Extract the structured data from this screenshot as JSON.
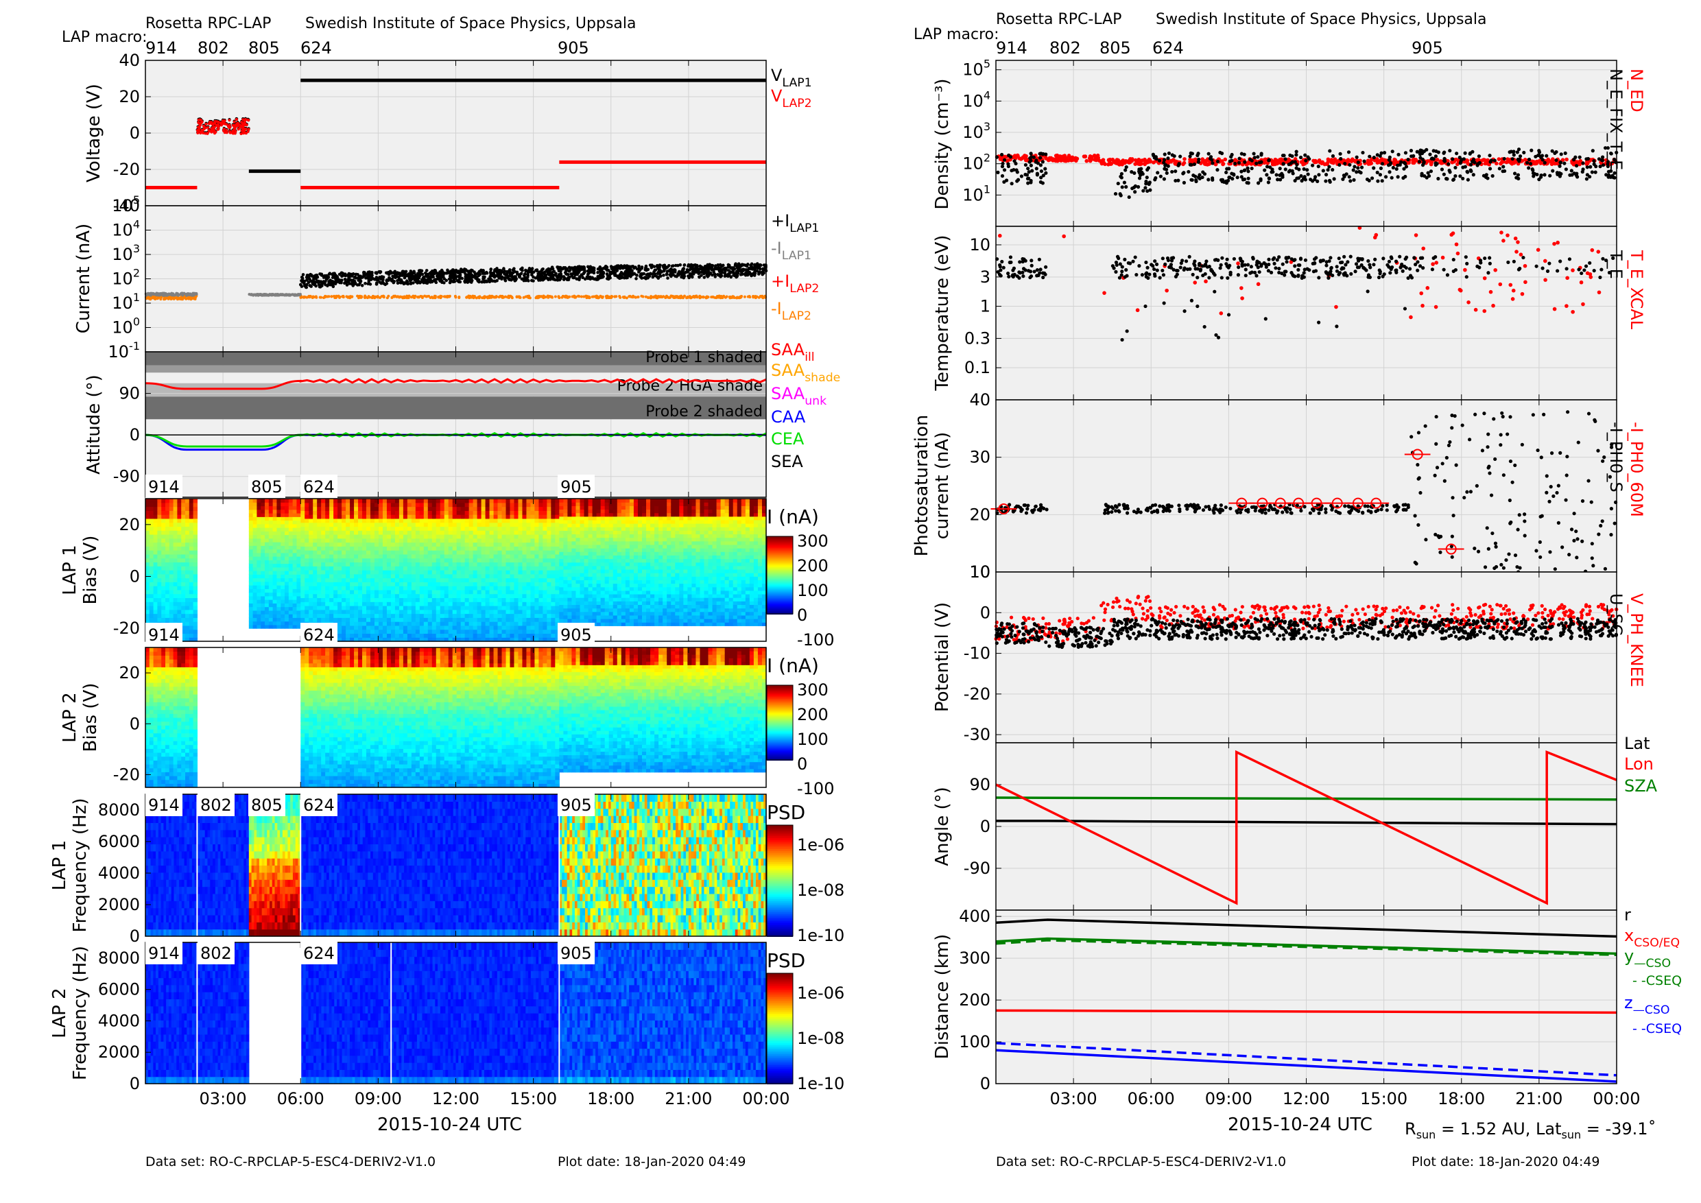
{
  "left": {
    "header": {
      "title": "Rosetta RPC-LAP",
      "institute": "Swedish Institute of Space Physics, Uppsala",
      "macro_label": "LAP macro:"
    },
    "macros": [
      "914",
      "802",
      "805",
      "624",
      "905"
    ],
    "footer": {
      "dataset": "Data set: RO-C-RPCLAP-5-ESC4-DERIV2-V1.0",
      "plotdate": "Plot date: 18-Jan-2020 04:49"
    },
    "xlabel": "2015-10-24 UTC"
  },
  "right": {
    "header": {
      "title": "Rosetta RPC-LAP",
      "institute": "Swedish Institute of Space Physics, Uppsala",
      "macro_label": "LAP macro:"
    },
    "macros": [
      "914",
      "802",
      "805",
      "624",
      "905"
    ],
    "footer": {
      "dataset": "Data set: RO-C-RPCLAP-5-ESC4-DERIV2-V1.0",
      "plotdate": "Plot date: 18-Jan-2020 04:49"
    },
    "xlabel": "2015-10-24 UTC",
    "rsun_text": "R",
    "rsun_sub": "sun",
    "rsun_val": " = 1.52 AU, Lat",
    "latsun_sub": "sun",
    "latsun_val": " = -39.1˚"
  },
  "chart_data": [
    {
      "type": "scatter",
      "panel": "voltage",
      "ylabel": "Voltage (V)",
      "ylim": [
        -40,
        40
      ],
      "yticks": [
        "40",
        "20",
        "0",
        "-20",
        "-40"
      ],
      "legend": [
        {
          "label": "V",
          "sub": "LAP1",
          "color": "#000000"
        },
        {
          "label": "V",
          "sub": "LAP2",
          "color": "#ff0000"
        }
      ],
      "series": [
        {
          "name": "VLAP2",
          "segments": [
            [
              0.0,
              2.0,
              -30
            ],
            [
              2.0,
              4.0,
              4
            ],
            [
              6.0,
              16.0,
              -30
            ],
            [
              16.0,
              24.0,
              -16
            ]
          ]
        },
        {
          "name": "VLAP1",
          "segments": [
            [
              4.0,
              6.0,
              -21
            ],
            [
              6.0,
              24.0,
              29
            ]
          ]
        }
      ]
    },
    {
      "type": "scatter",
      "panel": "current",
      "ylabel": "Current (nA)",
      "yscale": "log",
      "ylim": [
        0.1,
        100000
      ],
      "yticks": [
        "10^5",
        "10^4",
        "10^3",
        "10^2",
        "10^1",
        "10^0",
        "10^-1"
      ],
      "legend": [
        {
          "label": "+I",
          "sub": "LAP1",
          "color": "#000000"
        },
        {
          "label": "-I",
          "sub": "LAP1",
          "color": "#808080"
        },
        {
          "label": "+I",
          "sub": "LAP2",
          "color": "#ff0000"
        },
        {
          "label": "-I",
          "sub": "LAP2",
          "color": "#ff8000"
        }
      ],
      "series": [
        {
          "name": "+ILAP1",
          "segments": [
            [
              6.0,
              24.0,
              160
            ]
          ]
        },
        {
          "name": "-ILAP1",
          "segments": [
            [
              0.0,
              2.0,
              22
            ],
            [
              4.0,
              6.0,
              22
            ]
          ]
        },
        {
          "name": "-ILAP2",
          "segments": [
            [
              0.0,
              2.0,
              18
            ],
            [
              6.0,
              24.0,
              18
            ]
          ]
        }
      ]
    },
    {
      "type": "line",
      "panel": "attitude",
      "ylabel": "Attitude (°)",
      "ylim": [
        -135,
        180
      ],
      "yticks": [
        "90",
        "0",
        "-90"
      ],
      "bands": [
        "Probe 1 shaded",
        "Probe 2 HGA shade",
        "Probe 2 shaded"
      ],
      "legend": [
        {
          "label": "SAA",
          "sub": "ill",
          "color": "#ff0000"
        },
        {
          "label": "SAA",
          "sub": "shade",
          "color": "#ffa500"
        },
        {
          "label": "SAA",
          "sub": "unk",
          "color": "#ff00ff"
        },
        {
          "label": "CAA",
          "sub": "",
          "color": "#0000ff"
        },
        {
          "label": "CEA",
          "sub": "",
          "color": "#00dd00"
        },
        {
          "label": "SEA",
          "sub": "",
          "color": "#000000"
        }
      ]
    },
    {
      "type": "heatmap",
      "panel": "lap1_sweep",
      "ylabel": "LAP 1 Bias (V)",
      "ylim": [
        -25,
        30
      ],
      "yticks": [
        "20",
        "0",
        "-20"
      ],
      "colorbar_label": "I (nA)",
      "colorbar_ticks": [
        "300",
        "200",
        "100",
        "0",
        "-100"
      ]
    },
    {
      "type": "heatmap",
      "panel": "lap2_sweep",
      "ylabel": "LAP 2 Bias (V)",
      "ylim": [
        -25,
        30
      ],
      "yticks": [
        "20",
        "0",
        "-20"
      ],
      "colorbar_label": "I (nA)",
      "colorbar_ticks": [
        "300",
        "200",
        "100",
        "0",
        "-100"
      ]
    },
    {
      "type": "heatmap",
      "panel": "lap1_psd",
      "ylabel": "LAP 1 Frequency (Hz)",
      "ylim": [
        0,
        9000
      ],
      "yticks": [
        "8000",
        "6000",
        "4000",
        "2000",
        "0"
      ],
      "colorbar_label": "PSD",
      "colorbar_ticks": [
        "1e-06",
        "1e-08",
        "1e-10"
      ]
    },
    {
      "type": "heatmap",
      "panel": "lap2_psd",
      "ylabel": "LAP 2 Frequency (Hz)",
      "ylim": [
        0,
        9000
      ],
      "yticks": [
        "8000",
        "6000",
        "4000",
        "2000",
        "0"
      ],
      "colorbar_label": "PSD",
      "colorbar_ticks": [
        "1e-06",
        "1e-08",
        "1e-10"
      ]
    },
    {
      "type": "scatter",
      "panel": "density",
      "ylabel": "Density (cm⁻³)",
      "yscale": "log",
      "ylim": [
        1,
        100000
      ],
      "yticks": [
        "10^5",
        "10^4",
        "10^3",
        "10^2",
        "10^1"
      ],
      "legend_right": [
        {
          "label": "N_ED",
          "color": "#ff0000"
        },
        {
          "label": "N_E_FIX_T_E",
          "color": "#000000"
        }
      ],
      "series": [
        {
          "name": "N_ED",
          "level": 140
        },
        {
          "name": "N_E_FIX_T_E",
          "level": 60
        }
      ]
    },
    {
      "type": "scatter",
      "panel": "temperature",
      "ylabel": "Temperature (eV)",
      "yscale": "log",
      "ylim": [
        0.03,
        20
      ],
      "yticks": [
        "10",
        "3",
        "1",
        "0.3",
        "0.1"
      ],
      "legend_right": [
        {
          "label": "T_E_XCAL",
          "color": "#ff0000"
        },
        {
          "label": "T_E",
          "color": "#000000"
        }
      ]
    },
    {
      "type": "scatter",
      "panel": "photosat",
      "ylabel": "Photosaturation current (nA)",
      "ylim": [
        10,
        40
      ],
      "yticks": [
        "40",
        "30",
        "20",
        "10"
      ],
      "legend_right": [
        {
          "label": "-I_PH0_60M",
          "color": "#ff0000"
        },
        {
          "label": "-I_PH0_S",
          "color": "#000000"
        }
      ],
      "series": [
        {
          "name": "-I_PH0_S",
          "level": 21
        }
      ]
    },
    {
      "type": "scatter",
      "panel": "potential",
      "ylabel": "Potential (V)",
      "ylim": [
        -32,
        10
      ],
      "yticks": [
        "10",
        "0",
        "-10",
        "-20",
        "-30"
      ],
      "legend_right": [
        {
          "label": "V_PH_KNEE",
          "color": "#ff0000"
        },
        {
          "label": "U_SC",
          "color": "#000000"
        }
      ],
      "series": [
        {
          "name": "U_SC",
          "level": -4
        },
        {
          "name": "V_PH_KNEE",
          "level": 0
        }
      ]
    },
    {
      "type": "line",
      "panel": "angle",
      "ylabel": "Angle (°)",
      "ylim": [
        -180,
        180
      ],
      "yticks": [
        "90",
        "0",
        "-90"
      ],
      "legend": [
        {
          "label": "Lat",
          "color": "#000000"
        },
        {
          "label": "Lon",
          "color": "#ff0000"
        },
        {
          "label": "SZA",
          "color": "#008000"
        }
      ],
      "series": [
        {
          "name": "Lat",
          "x": [
            0,
            2,
            24
          ],
          "y": [
            12,
            12,
            5
          ]
        },
        {
          "name": "SZA",
          "x": [
            0,
            24
          ],
          "y": [
            62,
            58
          ]
        },
        {
          "name": "Lon",
          "x": [
            0,
            9.3,
            9.3,
            21.3,
            21.3,
            24
          ],
          "y": [
            90,
            -165,
            160,
            -165,
            160,
            100
          ]
        }
      ]
    },
    {
      "type": "line",
      "panel": "distance",
      "ylabel": "Distance (km)",
      "ylim": [
        0,
        400
      ],
      "yticks": [
        "400",
        "300",
        "200",
        "100",
        "0"
      ],
      "legend": [
        {
          "label": "r",
          "sub": "",
          "color": "#000000"
        },
        {
          "label": "x",
          "sub": "CSO/EQ",
          "color": "#ff0000"
        },
        {
          "label": "y",
          "sub": "—CSO",
          "color": "#008000"
        },
        {
          "label": "- -CSEQ",
          "sub": "",
          "color": "#008000"
        },
        {
          "label": "z",
          "sub": "—CSO",
          "color": "#0000ff"
        },
        {
          "label": "- -CSEQ",
          "sub": "",
          "color": "#0000ff"
        }
      ],
      "series": [
        {
          "name": "r",
          "x": [
            0,
            2,
            24
          ],
          "y": [
            385,
            392,
            352
          ]
        },
        {
          "name": "y_CSO",
          "x": [
            0,
            2,
            24
          ],
          "y": [
            340,
            347,
            311
          ]
        },
        {
          "name": "y_CSEQ",
          "x": [
            0,
            2,
            24
          ],
          "y": [
            335,
            343,
            308
          ]
        },
        {
          "name": "x",
          "x": [
            0,
            24
          ],
          "y": [
            175,
            170
          ]
        },
        {
          "name": "z_CSEQ",
          "x": [
            0,
            24
          ],
          "y": [
            97,
            20
          ]
        },
        {
          "name": "z_CSO",
          "x": [
            0,
            24
          ],
          "y": [
            80,
            5
          ]
        }
      ]
    }
  ],
  "time_ticks": [
    "03:00",
    "06:00",
    "09:00",
    "12:00",
    "15:00",
    "18:00",
    "21:00",
    "00:00"
  ]
}
